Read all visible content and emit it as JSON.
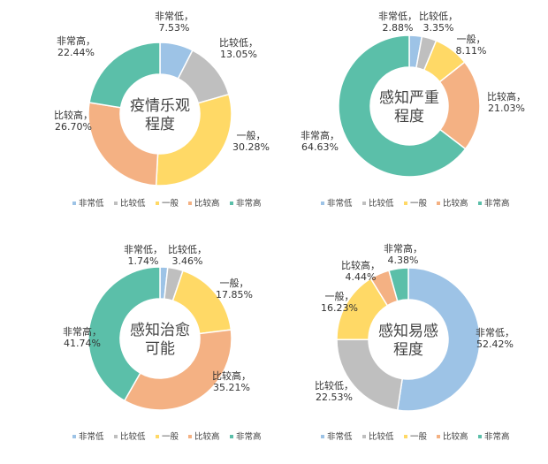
{
  "colors": {
    "非常低": "#9dc3e6",
    "比较低": "#bfbfbf",
    "一般": "#ffd966",
    "比较高": "#f4b183",
    "非常高": "#5bbfa9"
  },
  "chart_data": [
    {
      "type": "pie",
      "donut": true,
      "title": "疫情乐观程度",
      "title_lines": [
        "疫情乐观",
        "程度"
      ],
      "categories": [
        "非常低",
        "比较低",
        "一般",
        "比较高",
        "非常高"
      ],
      "values": [
        7.53,
        13.05,
        30.28,
        26.7,
        22.44
      ],
      "labels": [
        "7.53%",
        "13.05%",
        "30.28%",
        "26.70%",
        "22.44%"
      ],
      "legend": "bottom"
    },
    {
      "type": "pie",
      "donut": true,
      "title": "感知严重程度",
      "title_lines": [
        "感知严重",
        "程度"
      ],
      "categories": [
        "非常低",
        "比较低",
        "一般",
        "比较高",
        "非常高"
      ],
      "values": [
        2.88,
        3.35,
        8.11,
        21.03,
        64.63
      ],
      "labels": [
        "2.88%",
        "3.35%",
        "8.11%",
        "21.03%",
        "64.63%"
      ],
      "legend": "bottom"
    },
    {
      "type": "pie",
      "donut": true,
      "title": "感知治愈可能",
      "title_lines": [
        "感知治愈",
        "可能"
      ],
      "categories": [
        "非常低",
        "比较低",
        "一般",
        "比较高",
        "非常高"
      ],
      "values": [
        1.74,
        3.46,
        17.85,
        35.21,
        41.74
      ],
      "labels": [
        "1.74%",
        "3.46%",
        "17.85%",
        "35.21%",
        "41.74%"
      ],
      "legend": "bottom"
    },
    {
      "type": "pie",
      "donut": true,
      "title": "感知易感程度",
      "title_lines": [
        "感知易感",
        "程度"
      ],
      "categories": [
        "非常低",
        "比较低",
        "一般",
        "比较高",
        "非常高"
      ],
      "values": [
        52.42,
        22.53,
        16.23,
        4.44,
        4.38
      ],
      "labels": [
        "52.42%",
        "22.53%",
        "16.23%",
        "4.44%",
        "4.38%"
      ],
      "legend": "bottom"
    }
  ]
}
